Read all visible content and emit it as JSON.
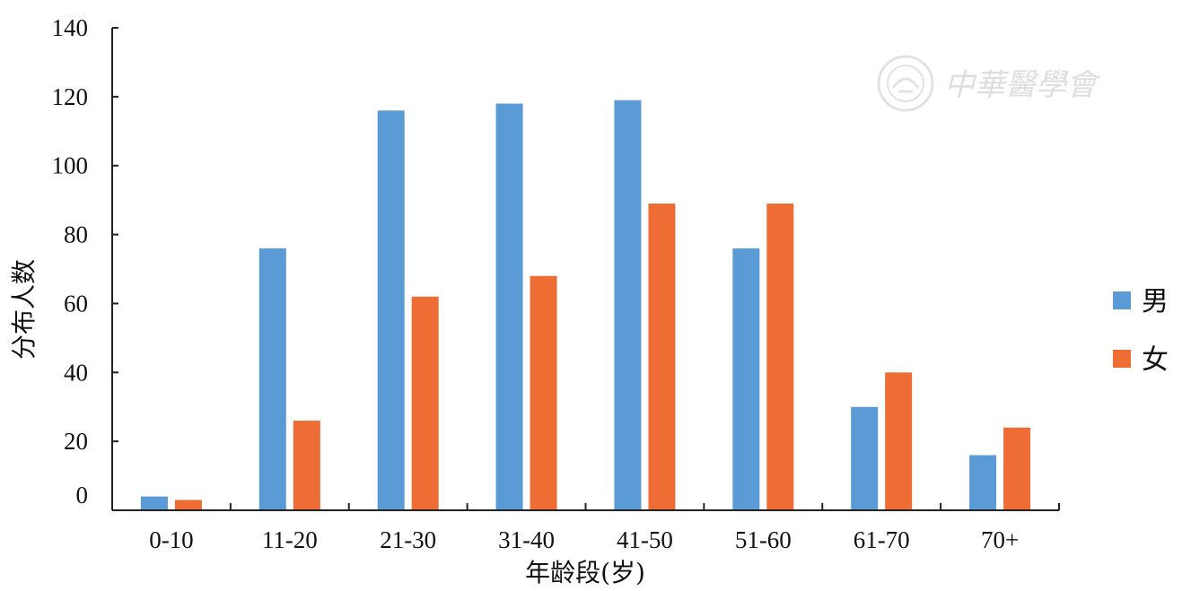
{
  "chart_data": {
    "type": "bar",
    "categories": [
      "0-10",
      "11-20",
      "21-30",
      "31-40",
      "41-50",
      "51-60",
      "61-70",
      "70+"
    ],
    "series": [
      {
        "name": "男",
        "color": "#5b9bd5",
        "values": [
          4,
          76,
          116,
          118,
          119,
          76,
          30,
          16
        ]
      },
      {
        "name": "女",
        "color": "#ed6d35",
        "values": [
          3,
          26,
          62,
          68,
          89,
          89,
          40,
          24
        ]
      }
    ],
    "xlabel": "年龄段(岁)",
    "ylabel": "分布人数",
    "ylim": [
      0,
      140
    ],
    "yticks": [
      0,
      20,
      40,
      60,
      80,
      100,
      120,
      140
    ],
    "grid": false,
    "legend_position": "right"
  },
  "watermark": {
    "text": "中華醫學會"
  }
}
